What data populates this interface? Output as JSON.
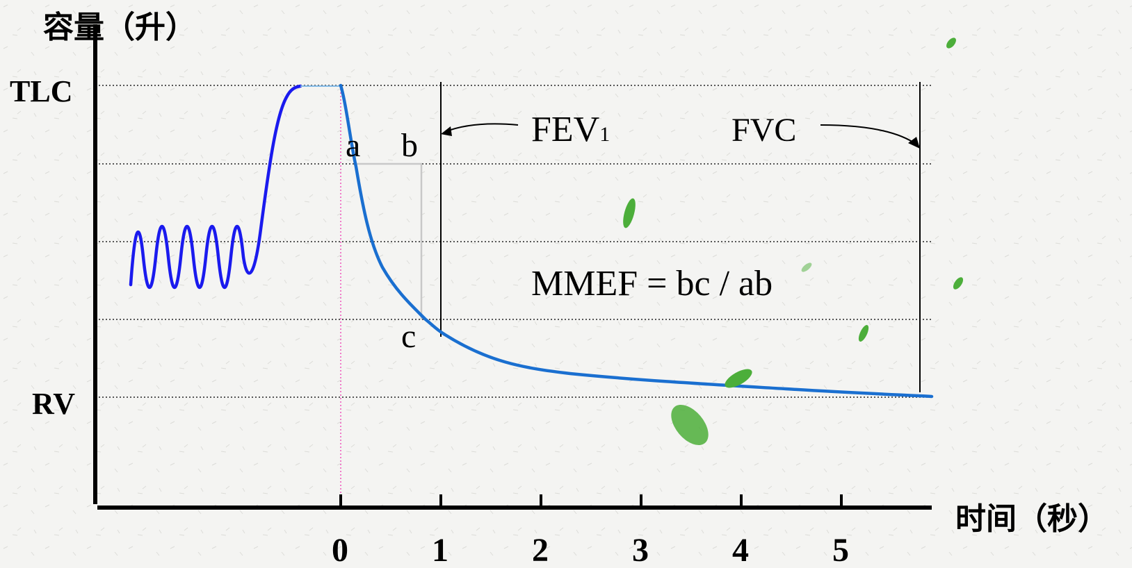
{
  "y_axis_title": "容量（升）",
  "x_axis_title": "时间（秒）",
  "y_labels": {
    "tlc": "TLC",
    "rv": "RV"
  },
  "x_ticks": [
    "0",
    "1",
    "2",
    "3",
    "4",
    "5"
  ],
  "point_labels": {
    "a": "a",
    "b": "b",
    "c": "c"
  },
  "fev1": {
    "main": "FEV",
    "sub": "1"
  },
  "fvc_label": "FVC",
  "formula": "MMEF = bc / ab",
  "colors": {
    "breathing_curve": "#1a1aee",
    "expiration_curve": "#1a6fd0",
    "axis": "#000000",
    "zero_line": "#ee55bb",
    "bracket": "#c8c8c8",
    "leaf": "#4cae3a"
  }
}
